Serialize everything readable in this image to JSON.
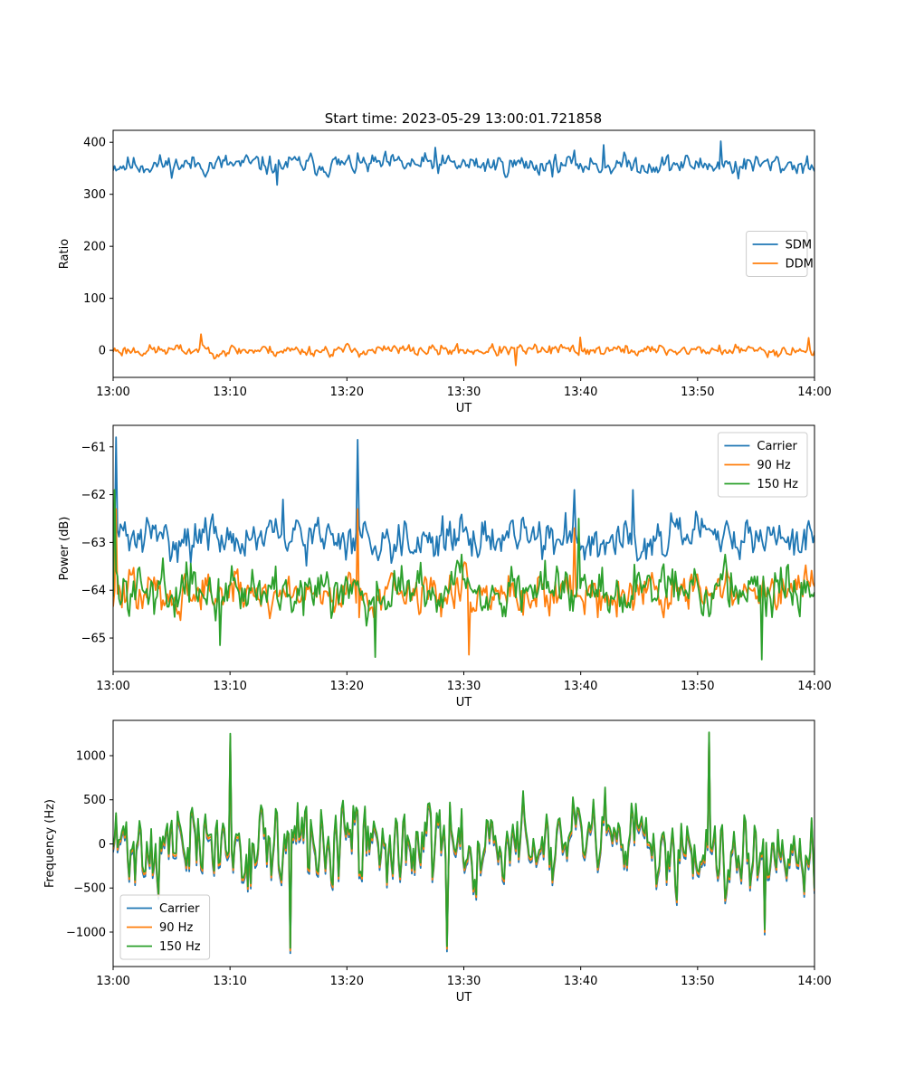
{
  "figure": {
    "title": "Start time: 2023-05-29 13:00:01.721858"
  },
  "chart_data": [
    {
      "type": "line",
      "xlabel": "UT",
      "ylabel": "Ratio",
      "xlim": [
        0,
        60
      ],
      "ylim": [
        -52,
        423
      ],
      "xticks": [
        0,
        10,
        20,
        30,
        40,
        50,
        60
      ],
      "xtick_labels": [
        "13:00",
        "13:10",
        "13:20",
        "13:30",
        "13:40",
        "13:50",
        "14:00"
      ],
      "yticks": [
        0,
        100,
        200,
        300,
        400
      ],
      "ytick_labels": [
        "0",
        "100",
        "200",
        "300",
        "400"
      ],
      "legend": "center-right",
      "grid": false,
      "series": [
        {
          "name": "SDM",
          "color": "#1f77b4",
          "mean": 357,
          "amp": 16,
          "seed": 11,
          "spikes": [
            [
              14.0,
              318
            ],
            [
              27.5,
              390
            ],
            [
              42.0,
              395
            ],
            [
              52.0,
              402
            ],
            [
              53.5,
              330
            ]
          ]
        },
        {
          "name": "DDM",
          "color": "#ff7f0e",
          "mean": 0,
          "amp": 9,
          "seed": 23,
          "spikes": [
            [
              7.5,
              31
            ],
            [
              34.5,
              -29
            ],
            [
              40.0,
              25
            ],
            [
              59.5,
              24
            ]
          ]
        }
      ]
    },
    {
      "type": "line",
      "xlabel": "UT",
      "ylabel": "Power (dB)",
      "xlim": [
        0,
        60
      ],
      "ylim": [
        -65.7,
        -60.55
      ],
      "xticks": [
        0,
        10,
        20,
        30,
        40,
        50,
        60
      ],
      "xtick_labels": [
        "13:00",
        "13:10",
        "13:20",
        "13:30",
        "13:40",
        "13:50",
        "14:00"
      ],
      "yticks": [
        -65,
        -64,
        -63,
        -62,
        -61
      ],
      "ytick_labels": [
        "−65",
        "−64",
        "−63",
        "−62",
        "−61"
      ],
      "legend": "top-right",
      "grid": false,
      "series": [
        {
          "name": "Carrier",
          "color": "#1f77b4",
          "mean": -62.9,
          "amp": 0.35,
          "seed": 31,
          "spikes": [
            [
              0.2,
              -60.8
            ],
            [
              20.9,
              -60.85
            ],
            [
              14.5,
              -62.1
            ],
            [
              39.5,
              -61.9
            ],
            [
              44.5,
              -61.9
            ]
          ]
        },
        {
          "name": "90 Hz",
          "color": "#ff7f0e",
          "mean": -64.05,
          "amp": 0.38,
          "seed": 47,
          "spikes": [
            [
              0.2,
              -62.3
            ],
            [
              20.9,
              -62.3
            ],
            [
              30.5,
              -65.35
            ],
            [
              39.5,
              -62.7
            ]
          ]
        },
        {
          "name": "150 Hz",
          "color": "#2ca02c",
          "mean": -63.95,
          "amp": 0.42,
          "seed": 59,
          "spikes": [
            [
              0.1,
              -61.9
            ],
            [
              9.2,
              -65.15
            ],
            [
              22.4,
              -65.4
            ],
            [
              39.8,
              -62.5
            ],
            [
              55.5,
              -65.45
            ]
          ]
        }
      ]
    },
    {
      "type": "line",
      "xlabel": "UT",
      "ylabel": "Frequency (Hz)",
      "xlim": [
        0,
        60
      ],
      "ylim": [
        -1390,
        1400
      ],
      "xticks": [
        0,
        10,
        20,
        30,
        40,
        50,
        60
      ],
      "xtick_labels": [
        "13:00",
        "13:10",
        "13:20",
        "13:30",
        "13:40",
        "13:50",
        "14:00"
      ],
      "yticks": [
        -1000,
        -500,
        0,
        500,
        1000
      ],
      "ytick_labels": [
        "−1000",
        "−500",
        "0",
        "500",
        "1000"
      ],
      "legend": "bottom-left",
      "grid": false,
      "series": [
        {
          "name": "Carrier",
          "color": "#1f77b4",
          "mean": -60,
          "amp": 380,
          "seed": 71,
          "offset": -60,
          "spikes": [
            [
              10.0,
              1200
            ],
            [
              15.2,
              -1240
            ],
            [
              28.6,
              -1220
            ],
            [
              51.0,
              1240
            ],
            [
              55.7,
              -1030
            ]
          ]
        },
        {
          "name": "90 Hz",
          "color": "#ff7f0e",
          "mean": -30,
          "amp": 380,
          "seed": 71,
          "offset": -30,
          "spikes": [
            [
              10.0,
              1220
            ],
            [
              15.2,
              -1210
            ],
            [
              28.6,
              -1190
            ],
            [
              51.0,
              1250
            ],
            [
              55.7,
              -1000
            ]
          ]
        },
        {
          "name": "150 Hz",
          "color": "#2ca02c",
          "mean": 0,
          "amp": 380,
          "seed": 71,
          "offset": 0,
          "spikes": [
            [
              10.0,
              1250
            ],
            [
              15.2,
              -1180
            ],
            [
              28.6,
              -1160
            ],
            [
              51.0,
              1265
            ],
            [
              55.7,
              -970
            ]
          ]
        }
      ]
    }
  ]
}
